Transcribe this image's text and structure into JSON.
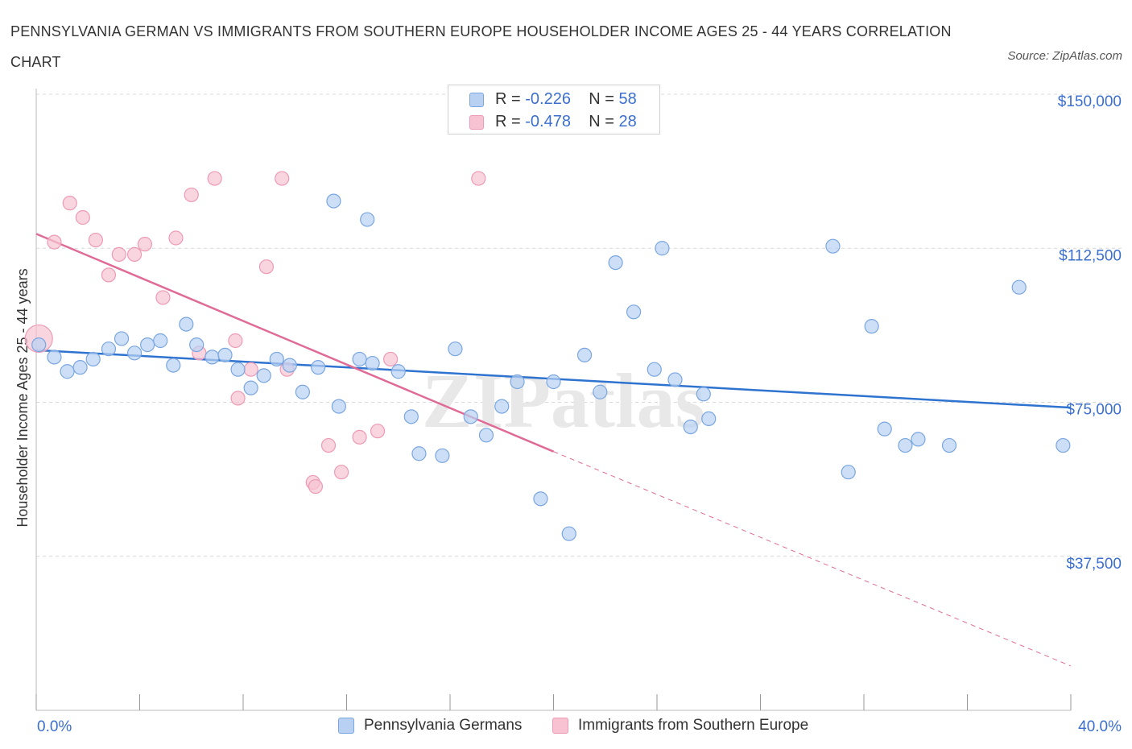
{
  "title": "PENNSYLVANIA GERMAN VS IMMIGRANTS FROM SOUTHERN EUROPE HOUSEHOLDER INCOME AGES 25 - 44 YEARS CORRELATION CHART",
  "source": "Source: ZipAtlas.com",
  "watermark": "ZIPatlas",
  "colors": {
    "blue_fill": "#b8d1f3",
    "blue_stroke": "#7aa6e0",
    "blue_line": "#2f73d0",
    "pink_fill": "#f7c3d3",
    "pink_stroke": "#ee9ab5",
    "pink_line": "#e06b96",
    "axis_label": "#3b6fcf",
    "grid": "#d8d8d8"
  },
  "legend": {
    "rows": [
      {
        "r_label": "R = ",
        "r_value": "-0.226",
        "n_label": "N = ",
        "n_value": "58"
      },
      {
        "r_label": "R = ",
        "r_value": "-0.478",
        "n_label": "N = ",
        "n_value": "28"
      }
    ]
  },
  "bottom_legend": [
    "Pennsylvania Germans",
    "Immigrants from Southern Europe"
  ],
  "chart_data": {
    "type": "scatter",
    "title": "PENNSYLVANIA GERMAN VS IMMIGRANTS FROM SOUTHERN EUROPE HOUSEHOLDER INCOME AGES 25 - 44 YEARS CORRELATION CHART",
    "xlabel": "",
    "ylabel": "Householder Income Ages 25 - 44 years",
    "xlim": [
      0,
      40
    ],
    "ylim": [
      0,
      150000
    ],
    "x_tick_labels": [
      "0.0%",
      "40.0%"
    ],
    "y_ticks": [
      37500,
      75000,
      112500,
      150000
    ],
    "y_tick_labels": [
      "$37,500",
      "$75,000",
      "$112,500",
      "$150,000"
    ],
    "grid": "horizontal dashed",
    "legend_position": "top-center",
    "series": [
      {
        "name": "Pennsylvania Germans",
        "color": "#b8d1f3",
        "trend": {
          "x": [
            0,
            40
          ],
          "y": [
            87700,
            73700
          ]
        },
        "points": [
          [
            0.1,
            89000
          ],
          [
            0.7,
            86000
          ],
          [
            1.2,
            82500
          ],
          [
            1.7,
            83500
          ],
          [
            2.2,
            85500
          ],
          [
            2.8,
            88000
          ],
          [
            3.3,
            90500
          ],
          [
            3.8,
            87000
          ],
          [
            4.3,
            89000
          ],
          [
            4.8,
            90000
          ],
          [
            5.3,
            84000
          ],
          [
            5.8,
            94000
          ],
          [
            6.2,
            89000
          ],
          [
            6.8,
            86000
          ],
          [
            7.3,
            86500
          ],
          [
            7.8,
            83000
          ],
          [
            8.3,
            78500
          ],
          [
            8.8,
            81500
          ],
          [
            9.3,
            85500
          ],
          [
            9.8,
            84000
          ],
          [
            10.3,
            77500
          ],
          [
            10.9,
            83500
          ],
          [
            11.7,
            74000
          ],
          [
            11.5,
            124000
          ],
          [
            12.8,
            119500
          ],
          [
            12.5,
            85500
          ],
          [
            13.0,
            84500
          ],
          [
            14.0,
            82500
          ],
          [
            14.5,
            71500
          ],
          [
            14.8,
            62500
          ],
          [
            15.7,
            62000
          ],
          [
            16.2,
            88000
          ],
          [
            16.8,
            71500
          ],
          [
            17.4,
            67000
          ],
          [
            18.0,
            74000
          ],
          [
            18.6,
            80000
          ],
          [
            19.5,
            51500
          ],
          [
            20.0,
            80000
          ],
          [
            20.6,
            43000
          ],
          [
            21.2,
            86500
          ],
          [
            21.8,
            77500
          ],
          [
            22.4,
            109000
          ],
          [
            23.1,
            97000
          ],
          [
            23.9,
            83000
          ],
          [
            24.2,
            112500
          ],
          [
            24.7,
            80500
          ],
          [
            25.3,
            69000
          ],
          [
            25.8,
            77000
          ],
          [
            26.0,
            71000
          ],
          [
            30.8,
            113000
          ],
          [
            31.4,
            58000
          ],
          [
            32.3,
            93500
          ],
          [
            32.8,
            68500
          ],
          [
            33.6,
            64500
          ],
          [
            34.1,
            66000
          ],
          [
            35.3,
            64500
          ],
          [
            38.0,
            103000
          ],
          [
            39.7,
            64500
          ]
        ]
      },
      {
        "name": "Immigrants from Southern Europe",
        "color": "#f7c3d3",
        "trend": {
          "x": [
            0,
            20
          ],
          "y": [
            116000,
            63000
          ]
        },
        "trend_dashed": {
          "x": [
            20,
            40
          ],
          "y": [
            63000,
            10800
          ]
        },
        "points": [
          [
            0.1,
            90500
          ],
          [
            0.7,
            114000
          ],
          [
            1.3,
            123500
          ],
          [
            1.8,
            120000
          ],
          [
            2.3,
            114500
          ],
          [
            2.8,
            106000
          ],
          [
            3.2,
            111000
          ],
          [
            3.8,
            111000
          ],
          [
            4.2,
            113500
          ],
          [
            4.9,
            100500
          ],
          [
            5.4,
            115000
          ],
          [
            6.0,
            125500
          ],
          [
            6.3,
            87000
          ],
          [
            6.9,
            129500
          ],
          [
            7.7,
            90000
          ],
          [
            7.8,
            76000
          ],
          [
            8.3,
            83000
          ],
          [
            8.9,
            108000
          ],
          [
            9.5,
            129500
          ],
          [
            9.7,
            83000
          ],
          [
            10.7,
            55500
          ],
          [
            10.8,
            54500
          ],
          [
            11.3,
            64500
          ],
          [
            11.8,
            58000
          ],
          [
            12.5,
            66500
          ],
          [
            13.2,
            68000
          ],
          [
            13.7,
            85500
          ],
          [
            17.1,
            129500
          ]
        ]
      }
    ]
  }
}
